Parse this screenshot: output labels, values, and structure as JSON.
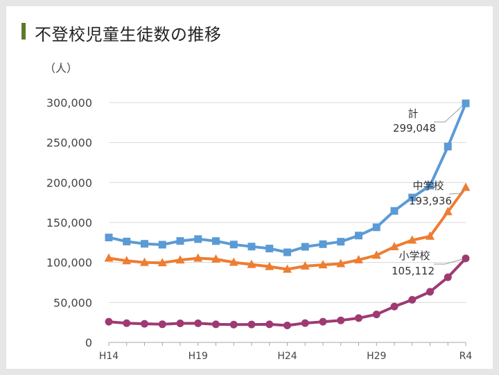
{
  "title": "不登校児童生徒数の推移",
  "chart_data": {
    "type": "line",
    "ylabel": "（人）",
    "xlabel": "",
    "ylim": [
      0,
      300000
    ],
    "y_ticks": [
      0,
      50000,
      100000,
      150000,
      200000,
      250000,
      300000
    ],
    "y_tick_labels": [
      "0",
      "50,000",
      "100,000",
      "150,000",
      "200,000",
      "250,000",
      "300,000"
    ],
    "x": [
      "H14",
      "H15",
      "H16",
      "H17",
      "H18",
      "H19",
      "H20",
      "H21",
      "H22",
      "H23",
      "H24",
      "H25",
      "H26",
      "H27",
      "H28",
      "H29",
      "H30",
      "R1",
      "R2",
      "R3",
      "R4"
    ],
    "x_tick_labels": [
      "H14",
      "H19",
      "H24",
      "H29",
      "R4"
    ],
    "grid": "horizontal",
    "series": [
      {
        "name": "計",
        "color": "#5b9bd5",
        "marker": "square",
        "values": [
          131252,
          126226,
          123358,
          122255,
          126894,
          129255,
          126805,
          122432,
          119891,
          117458,
          112689,
          119617,
          122897,
          125991,
          133683,
          144031,
          164528,
          181272,
          196127,
          244940,
          299048
        ]
      },
      {
        "name": "中学校",
        "color": "#ed7d31",
        "marker": "triangle",
        "values": [
          105383,
          102149,
          100040,
          99578,
          103069,
          105328,
          104153,
          100105,
          97428,
          94836,
          91446,
          95442,
          97033,
          98408,
          103235,
          108999,
          119687,
          127922,
          132777,
          163442,
          193936
        ]
      },
      {
        "name": "小学校",
        "color": "#9e3a72",
        "marker": "circle",
        "values": [
          25869,
          24077,
          23318,
          22709,
          23825,
          23927,
          22652,
          22327,
          22463,
          22622,
          21243,
          24175,
          25864,
          27583,
          30448,
          35032,
          44841,
          53350,
          63350,
          81498,
          105112
        ]
      }
    ],
    "annotations": [
      {
        "series": "計",
        "label": "計",
        "value_text": "299,048"
      },
      {
        "series": "中学校",
        "label": "中学校",
        "value_text": "193,936"
      },
      {
        "series": "小学校",
        "label": "小学校",
        "value_text": "105,112"
      }
    ]
  }
}
